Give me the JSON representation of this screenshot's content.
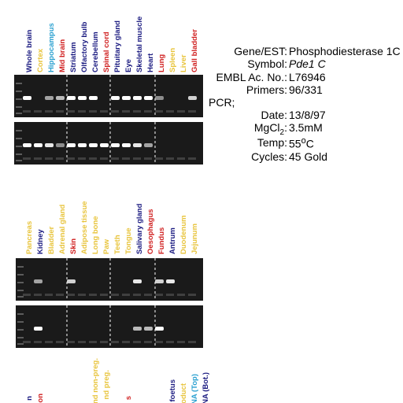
{
  "lane_groups": [
    {
      "lanes": [
        {
          "label": "Whole brain",
          "color": "#1a1a80"
        },
        {
          "label": "Cortex",
          "color": "#e8c43c"
        },
        {
          "label": "Hippocampus",
          "color": "#2aa0d0"
        },
        {
          "label": "Mid brain",
          "color": "#d02020"
        },
        {
          "label": "Striatum",
          "color": "#1a1a80"
        },
        {
          "label": "Olfactory bulb",
          "color": "#1a1a80"
        },
        {
          "label": "Cerebellum",
          "color": "#1a1a80"
        },
        {
          "label": "Spinal cord",
          "color": "#d02020"
        },
        {
          "label": "Pituitary gland",
          "color": "#1a1a80"
        },
        {
          "label": "Eye",
          "color": "#1a1a80"
        },
        {
          "label": "Skeletal muscle",
          "color": "#1a1a80"
        },
        {
          "label": "Heart",
          "color": "#1a1a80"
        },
        {
          "label": "Lung",
          "color": "#d02020"
        },
        {
          "label": "Spleen",
          "color": "#e8c43c"
        },
        {
          "label": "Liver",
          "color": "#e8c43c"
        },
        {
          "label": "Gall bladder",
          "color": "#d02020"
        }
      ]
    },
    {
      "lanes": [
        {
          "label": "Pancreas",
          "color": "#e8c43c"
        },
        {
          "label": "Kidney",
          "color": "#1a1a80"
        },
        {
          "label": "Bladder",
          "color": "#e8c43c"
        },
        {
          "label": "Adrenal gland",
          "color": "#e8c43c"
        },
        {
          "label": "Skin",
          "color": "#d02020"
        },
        {
          "label": "Adipose tissue",
          "color": "#e8c43c"
        },
        {
          "label": "Long bone",
          "color": "#e8c43c"
        },
        {
          "label": "Paw",
          "color": "#e8c43c"
        },
        {
          "label": "Teeth",
          "color": "#e8c43c"
        },
        {
          "label": "Tongue",
          "color": "#e8c43c"
        },
        {
          "label": "Salivary gland",
          "color": "#1a1a80"
        },
        {
          "label": "Oesophagus",
          "color": "#d02020"
        },
        {
          "label": "Fundus",
          "color": "#d02020"
        },
        {
          "label": "Antrum",
          "color": "#1a1a80"
        },
        {
          "label": "Duodenum",
          "color": "#e8c43c"
        },
        {
          "label": "Jejunum",
          "color": "#e8c43c"
        }
      ]
    },
    {
      "lanes": [
        {
          "label": "n",
          "color": "#1a1a80"
        },
        {
          "label": "on",
          "color": "#d02020"
        },
        {
          "label": "nd non-preg.",
          "color": "#e8c43c"
        },
        {
          "label": "nd preg.",
          "color": "#e8c43c"
        },
        {
          "label": "s",
          "color": "#d02020"
        },
        {
          "label": "foetus",
          "color": "#1a1a80"
        },
        {
          "label": "oduct",
          "color": "#e8c43c"
        },
        {
          "label": "NA (Top)",
          "color": "#2aa0d0"
        },
        {
          "label": "NA (Bot.)",
          "color": "#1a1a80"
        }
      ]
    }
  ],
  "info": {
    "gene_label": "Gene/EST:",
    "gene_value": "Phosphodiesterase 1C",
    "symbol_label": "Symbol:",
    "symbol_value": "Pde1 C",
    "embl_label": "EMBL Ac. No.:",
    "embl_value": "L76946",
    "primers_label": "Primers:",
    "primers_value": "96/331",
    "pcr_heading": "PCR;",
    "date_label": "Date:",
    "date_value": "13/8/97",
    "mgcl_label": "MgCl",
    "mgcl_sub": "2",
    "mgcl_colon": ":",
    "mgcl_value": "3.5mM",
    "temp_label": "Temp:",
    "temp_value": "55",
    "temp_sup": "o",
    "temp_unit": "C",
    "cycles_label": "Cycles:",
    "cycles_value": "45 Gold"
  }
}
